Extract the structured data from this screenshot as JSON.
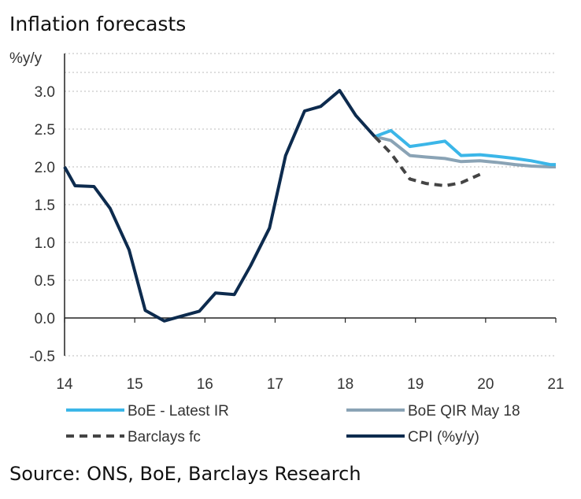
{
  "title": "Inflation forecasts",
  "source": "Source: ONS, BoE, Barclays Research",
  "chart_data": {
    "type": "line",
    "title": "Inflation forecasts",
    "ylabel": "%y/y",
    "xlabel": "",
    "ylim": [
      -0.5,
      3.0
    ],
    "xlim": [
      14,
      21
    ],
    "yticks": [
      "3.0",
      "2.5",
      "2.0",
      "1.5",
      "1.0",
      "0.5",
      "0.0",
      "-0.5"
    ],
    "ytick_values": [
      3.0,
      2.5,
      2.0,
      1.5,
      1.0,
      0.5,
      0.0,
      -0.5
    ],
    "xticks": [
      "14",
      "15",
      "16",
      "17",
      "18",
      "19",
      "20",
      "21"
    ],
    "xtick_values": [
      14,
      15,
      16,
      17,
      18,
      19,
      20,
      21
    ],
    "grid": "horizontal dotted",
    "legend_position": "bottom",
    "series": [
      {
        "name": "CPI (%y/y)",
        "color": "#0d2b4e",
        "dash": false,
        "x": [
          14.0,
          14.15,
          14.42,
          14.65,
          14.92,
          15.15,
          15.42,
          15.65,
          15.92,
          16.15,
          16.42,
          16.65,
          16.92,
          17.15,
          17.42,
          17.65,
          17.92,
          18.15,
          18.42
        ],
        "y": [
          2.0,
          1.75,
          1.74,
          1.45,
          0.9,
          0.1,
          -0.04,
          0.02,
          0.09,
          0.33,
          0.31,
          0.69,
          1.19,
          2.15,
          2.74,
          2.8,
          3.01,
          2.68,
          2.4
        ]
      },
      {
        "name": "BoE - Latest IR",
        "color": "#3bb6e8",
        "dash": false,
        "x": [
          18.42,
          18.65,
          18.92,
          19.15,
          19.42,
          19.65,
          19.92,
          20.15,
          20.42,
          20.65,
          20.92,
          21.0
        ],
        "y": [
          2.4,
          2.48,
          2.27,
          2.3,
          2.34,
          2.15,
          2.16,
          2.14,
          2.11,
          2.08,
          2.03,
          2.03
        ]
      },
      {
        "name": "BoE QIR May 18",
        "color": "#8aa3b5",
        "dash": false,
        "x": [
          18.42,
          18.65,
          18.92,
          19.15,
          19.42,
          19.65,
          19.92,
          20.15,
          20.42,
          20.65,
          20.92,
          21.0
        ],
        "y": [
          2.4,
          2.35,
          2.15,
          2.13,
          2.11,
          2.07,
          2.08,
          2.06,
          2.03,
          2.01,
          2.0,
          2.0
        ]
      },
      {
        "name": "Barclays fc",
        "color": "#444444",
        "dash": true,
        "x": [
          18.42,
          18.65,
          18.92,
          19.15,
          19.42,
          19.65,
          19.92
        ],
        "y": [
          2.4,
          2.18,
          1.84,
          1.78,
          1.75,
          1.79,
          1.9
        ]
      }
    ],
    "legend_order": [
      "BoE - Latest IR",
      "BoE QIR May 18",
      "Barclays fc",
      "CPI (%y/y)"
    ]
  }
}
